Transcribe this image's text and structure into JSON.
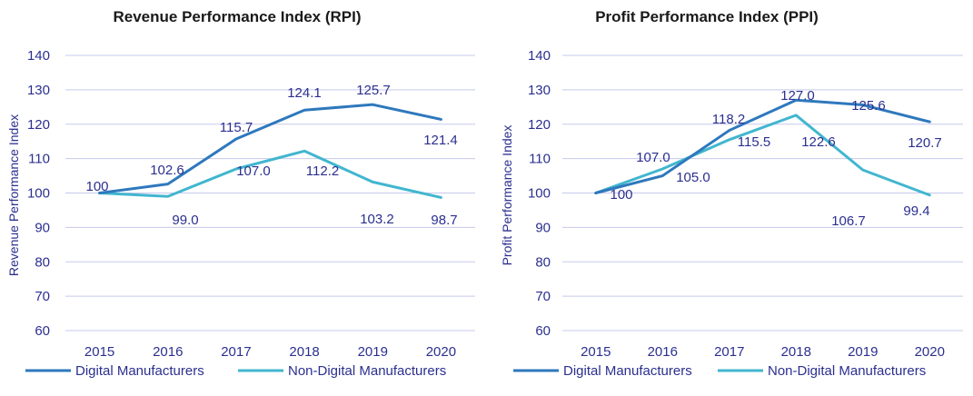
{
  "colors": {
    "digital": "#2e78bd",
    "non_digital": "#41b6cf",
    "text": "#2b2f8f",
    "grid": "#c7c9ec"
  },
  "chart_data": [
    {
      "type": "line",
      "title": "Revenue Performance Index (RPI)",
      "xlabel": "",
      "ylabel": "Revenue Performance Index",
      "categories": [
        "2015",
        "2016",
        "2017",
        "2018",
        "2019",
        "2020"
      ],
      "ylim": [
        60,
        140
      ],
      "yticks": [
        60,
        70,
        80,
        90,
        100,
        110,
        120,
        130,
        140
      ],
      "grid": true,
      "legend": "bottom",
      "series": [
        {
          "name": "Digital Manufacturers",
          "values": [
            100,
            102.6,
            115.7,
            124.1,
            125.7,
            121.4
          ],
          "labels": [
            "100",
            "102.6",
            "115.7",
            "124.1",
            "125.7",
            "121.4"
          ],
          "color": "#2e78bd"
        },
        {
          "name": "Non-Digital Manufacturers",
          "values": [
            100,
            99.0,
            107.0,
            112.2,
            103.2,
            98.7
          ],
          "labels": [
            "",
            "99.0",
            "107.0",
            "112.2",
            "103.2",
            "98.7"
          ],
          "color": "#41b6cf"
        }
      ]
    },
    {
      "type": "line",
      "title": "Profit Performance Index (PPI)",
      "xlabel": "",
      "ylabel": "Profit Performance Index",
      "categories": [
        "2015",
        "2016",
        "2017",
        "2018",
        "2019",
        "2020"
      ],
      "ylim": [
        60,
        140
      ],
      "yticks": [
        60,
        70,
        80,
        90,
        100,
        110,
        120,
        130,
        140
      ],
      "grid": true,
      "legend": "bottom",
      "series": [
        {
          "name": "Digital Manufacturers",
          "values": [
            100,
            105.0,
            118.2,
            127.0,
            125.6,
            120.7
          ],
          "labels": [
            "100",
            "105.0",
            "118.2",
            "127.0",
            "125.6",
            "120.7"
          ],
          "color": "#2e78bd"
        },
        {
          "name": "Non-Digital Manufacturers",
          "values": [
            100,
            107.0,
            115.5,
            122.6,
            106.7,
            99.4
          ],
          "labels": [
            "",
            "107.0",
            "115.5",
            "122.6",
            "106.7",
            "99.4"
          ],
          "color": "#41b6cf"
        }
      ]
    }
  ]
}
